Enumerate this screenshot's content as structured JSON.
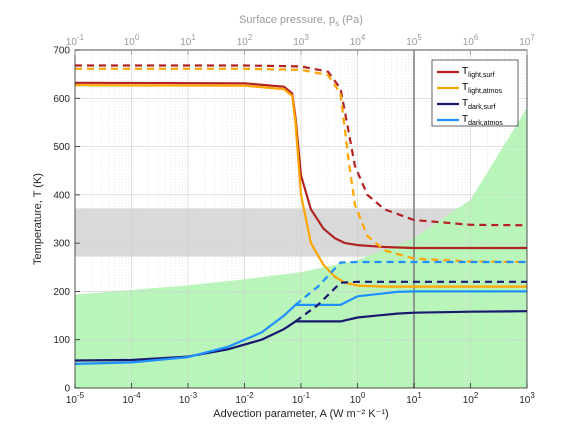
{
  "chart_data": {
    "type": "line",
    "title": "",
    "xlabel": "Advection parameter, A (W m⁻² K⁻¹)",
    "ylabel": "Temperature, T (K)",
    "xscale": "log",
    "xlim": [
      1e-05,
      1000
    ],
    "ylim": [
      0,
      700
    ],
    "x_ticks": [
      {
        "base": "10",
        "exp": "-5"
      },
      {
        "base": "10",
        "exp": "-4"
      },
      {
        "base": "10",
        "exp": "-3"
      },
      {
        "base": "10",
        "exp": "-2"
      },
      {
        "base": "10",
        "exp": "-1"
      },
      {
        "base": "10",
        "exp": "0"
      },
      {
        "base": "10",
        "exp": "1"
      },
      {
        "base": "10",
        "exp": "2"
      },
      {
        "base": "10",
        "exp": "3"
      }
    ],
    "y_ticks": [
      "0",
      "100",
      "200",
      "300",
      "400",
      "500",
      "600",
      "700"
    ],
    "top_axis": {
      "label": "Surface pressure, p_s (Pa)",
      "label_main": "Surface pressure, p",
      "label_sub": "s",
      "label_end": " (Pa)",
      "xscale": "log",
      "xlim": [
        0.1,
        10000000
      ],
      "ticks": [
        {
          "base": "10",
          "exp": "-1"
        },
        {
          "base": "10",
          "exp": "0"
        },
        {
          "base": "10",
          "exp": "1"
        },
        {
          "base": "10",
          "exp": "2"
        },
        {
          "base": "10",
          "exp": "3"
        },
        {
          "base": "10",
          "exp": "4"
        },
        {
          "base": "10",
          "exp": "5"
        },
        {
          "base": "10",
          "exp": "6"
        },
        {
          "base": "10",
          "exp": "7"
        }
      ]
    },
    "grid": true,
    "legend_position": "top-right",
    "shaded_regions": [
      {
        "type": "horizontal_band",
        "y_range": [
          272,
          372
        ],
        "color": "#d9d9d9"
      },
      {
        "type": "lower_region",
        "color": "#b8f5b8",
        "upper_boundary": [
          [
            1e-05,
            193
          ],
          [
            0.0001,
            203
          ],
          [
            0.001,
            213
          ],
          [
            0.01,
            225
          ],
          [
            0.1,
            240
          ],
          [
            1,
            265
          ],
          [
            10,
            310
          ],
          [
            100,
            390
          ],
          [
            1000,
            580
          ]
        ]
      }
    ],
    "vertical_line": {
      "x": 10,
      "color": "#808080"
    },
    "series": [
      {
        "name": "T_light,surf",
        "name_main": "T",
        "name_sub": "light,surf",
        "color": "#b22222",
        "style": "solid",
        "points": [
          [
            1e-05,
            632
          ],
          [
            0.01,
            631
          ],
          [
            0.05,
            624
          ],
          [
            0.07,
            610
          ],
          [
            0.08,
            560
          ],
          [
            0.1,
            440
          ],
          [
            0.15,
            370
          ],
          [
            0.25,
            330
          ],
          [
            0.4,
            310
          ],
          [
            0.6,
            300
          ],
          [
            1,
            296
          ],
          [
            3,
            292
          ],
          [
            10,
            290
          ],
          [
            100,
            290
          ],
          [
            1000,
            290
          ]
        ]
      },
      {
        "name": "T_light,atmos",
        "name_main": "T",
        "name_sub": "light,atmos",
        "color": "#ffa500",
        "style": "solid",
        "points": [
          [
            1e-05,
            627
          ],
          [
            0.01,
            626
          ],
          [
            0.05,
            619
          ],
          [
            0.07,
            605
          ],
          [
            0.08,
            550
          ],
          [
            0.1,
            400
          ],
          [
            0.15,
            300
          ],
          [
            0.25,
            255
          ],
          [
            0.4,
            230
          ],
          [
            0.6,
            218
          ],
          [
            1,
            212
          ],
          [
            3,
            210
          ],
          [
            10,
            210
          ],
          [
            100,
            210
          ],
          [
            1000,
            210
          ]
        ]
      },
      {
        "name": "T_dark,surf",
        "name_main": "T",
        "name_sub": "dark,surf",
        "color": "#191970",
        "style": "solid",
        "points": [
          [
            1e-05,
            57
          ],
          [
            0.0001,
            58
          ],
          [
            0.001,
            65
          ],
          [
            0.005,
            80
          ],
          [
            0.02,
            100
          ],
          [
            0.05,
            122
          ],
          [
            0.08,
            138
          ],
          [
            0.5,
            138
          ],
          [
            1,
            146
          ],
          [
            5,
            154
          ],
          [
            10,
            156
          ],
          [
            100,
            158
          ],
          [
            1000,
            159
          ]
        ]
      },
      {
        "name": "T_dark,atmos",
        "name_main": "T",
        "name_sub": "dark,atmos",
        "color": "#1e90ff",
        "style": "solid",
        "points": [
          [
            1e-05,
            50
          ],
          [
            0.0001,
            53
          ],
          [
            0.001,
            64
          ],
          [
            0.005,
            85
          ],
          [
            0.02,
            115
          ],
          [
            0.05,
            150
          ],
          [
            0.08,
            172
          ],
          [
            0.5,
            172
          ],
          [
            1,
            190
          ],
          [
            5,
            199
          ],
          [
            10,
            200
          ],
          [
            100,
            200
          ],
          [
            1000,
            200
          ]
        ]
      },
      {
        "name": "T_light,surf (dashed)",
        "color": "#b22222",
        "style": "dashed",
        "points": [
          [
            1e-05,
            668
          ],
          [
            0.01,
            668
          ],
          [
            0.1,
            666
          ],
          [
            0.3,
            655
          ],
          [
            0.5,
            620
          ],
          [
            0.7,
            530
          ],
          [
            0.9,
            460
          ],
          [
            1.5,
            400
          ],
          [
            3,
            370
          ],
          [
            10,
            348
          ],
          [
            100,
            338
          ],
          [
            1000,
            337
          ]
        ]
      },
      {
        "name": "T_light,atmos (dashed)",
        "color": "#ffa500",
        "style": "dashed",
        "points": [
          [
            1e-05,
            661
          ],
          [
            0.01,
            661
          ],
          [
            0.1,
            659
          ],
          [
            0.3,
            648
          ],
          [
            0.5,
            610
          ],
          [
            0.7,
            470
          ],
          [
            0.9,
            380
          ],
          [
            1.5,
            315
          ],
          [
            3,
            285
          ],
          [
            10,
            268
          ],
          [
            100,
            262
          ],
          [
            1000,
            261
          ]
        ]
      },
      {
        "name": "T_dark,surf (dashed)",
        "color": "#191970",
        "style": "dashed",
        "points": [
          [
            0.08,
            138
          ],
          [
            0.2,
            172
          ],
          [
            0.5,
            218
          ],
          [
            1,
            220
          ],
          [
            10,
            220
          ],
          [
            100,
            220
          ],
          [
            1000,
            220
          ]
        ]
      },
      {
        "name": "T_dark,atmos (dashed)",
        "color": "#1e90ff",
        "style": "dashed",
        "points": [
          [
            0.08,
            172
          ],
          [
            0.2,
            210
          ],
          [
            0.5,
            260
          ],
          [
            1,
            261
          ],
          [
            10,
            261
          ],
          [
            100,
            261
          ],
          [
            1000,
            261
          ]
        ]
      }
    ]
  }
}
